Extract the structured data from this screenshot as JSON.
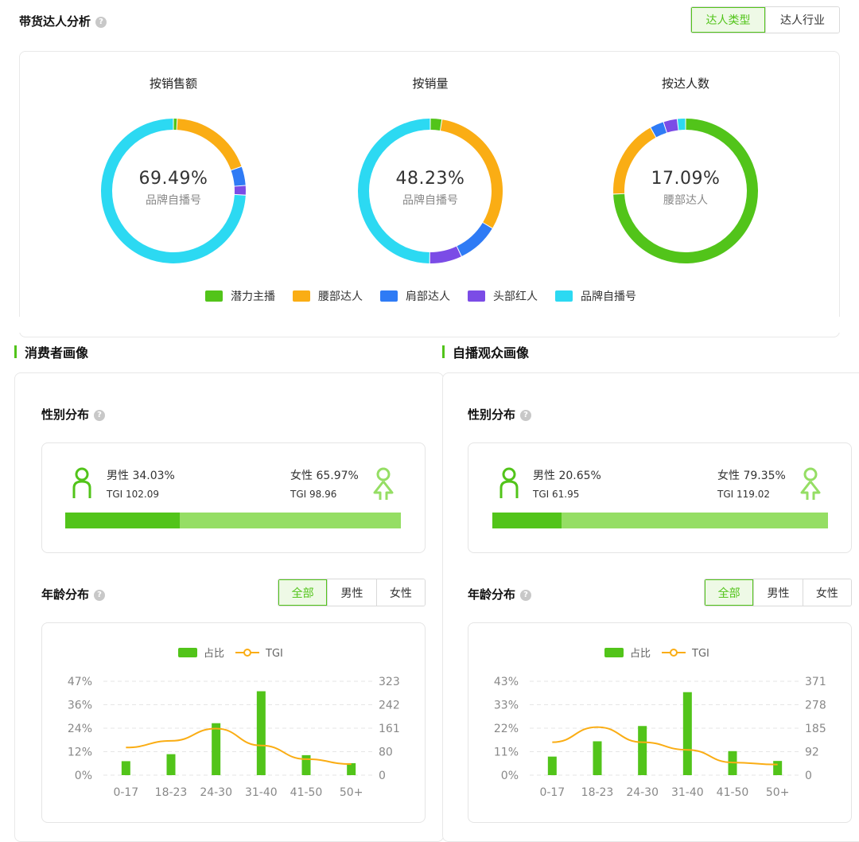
{
  "top": {
    "title": "带货达人分析",
    "tabs": [
      {
        "label": "达人类型",
        "active": true
      },
      {
        "label": "达人行业",
        "active": false
      }
    ]
  },
  "donuts": [
    {
      "title": "按销售额",
      "center_value": "69.49%",
      "center_label": "品牌自播号",
      "segments": [
        {
          "category": "潜力主播",
          "value": 0.8
        },
        {
          "category": "腰部达人",
          "value": 17.5
        },
        {
          "category": "肩部达人",
          "value": 4.0
        },
        {
          "category": "头部红人",
          "value": 2.0
        },
        {
          "category": "品牌自播号",
          "value": 69.49
        }
      ]
    },
    {
      "title": "按销量",
      "center_value": "48.23%",
      "center_label": "品牌自播号",
      "segments": [
        {
          "category": "潜力主播",
          "value": 2.5
        },
        {
          "category": "腰部达人",
          "value": 30.0
        },
        {
          "category": "肩部达人",
          "value": 9.0
        },
        {
          "category": "头部红人",
          "value": 7.0
        },
        {
          "category": "品牌自播号",
          "value": 48.23
        }
      ]
    },
    {
      "title": "按达人数",
      "center_value": "17.09%",
      "center_label": "腰部达人",
      "segments": [
        {
          "category": "潜力主播",
          "value": 72.0
        },
        {
          "category": "腰部达人",
          "value": 17.09
        },
        {
          "category": "肩部达人",
          "value": 3.0
        },
        {
          "category": "头部红人",
          "value": 3.0
        },
        {
          "category": "品牌自播号",
          "value": 1.8
        }
      ]
    }
  ],
  "legend": [
    {
      "label": "潜力主播",
      "color": "#52c41a"
    },
    {
      "label": "腰部达人",
      "color": "#faad14"
    },
    {
      "label": "肩部达人",
      "color": "#2f7bf5"
    },
    {
      "label": "头部红人",
      "color": "#7b4ce6"
    },
    {
      "label": "品牌自播号",
      "color": "#2cd9f2"
    }
  ],
  "panels": [
    {
      "title": "消费者画像",
      "gender_title": "性别分布",
      "male_label": "男性 34.03%",
      "male_tgi": "TGI 102.09",
      "female_label": "女性 65.97%",
      "female_tgi": "TGI 98.96",
      "male_share": 0.3403,
      "age_title": "年龄分布",
      "age_tabs": [
        {
          "label": "全部",
          "active": true
        },
        {
          "label": "男性",
          "active": false
        },
        {
          "label": "女性",
          "active": false
        }
      ],
      "legend_bar": "占比",
      "legend_line": "TGI",
      "chart_data": {
        "type": "bar",
        "categories": [
          "0-17",
          "18-23",
          "24-30",
          "31-40",
          "41-50",
          "50+"
        ],
        "series": [
          {
            "name": "占比",
            "type": "bar",
            "axis": "left",
            "values": [
              7,
              10.5,
              26,
              42,
              10,
              6
            ]
          },
          {
            "name": "TGI",
            "type": "line",
            "axis": "right",
            "values": [
              95,
              118,
              160,
              102,
              55,
              38
            ]
          }
        ],
        "left_ticks": [
          "0%",
          "12%",
          "24%",
          "36%",
          "47%"
        ],
        "left_max": 47,
        "right_ticks": [
          "0",
          "80",
          "161",
          "242",
          "323"
        ],
        "right_max": 323
      }
    },
    {
      "title": "自播观众画像",
      "gender_title": "性别分布",
      "male_label": "男性 20.65%",
      "male_tgi": "TGI 61.95",
      "female_label": "女性 79.35%",
      "female_tgi": "TGI 119.02",
      "male_share": 0.2065,
      "age_title": "年龄分布",
      "age_tabs": [
        {
          "label": "全部",
          "active": true
        },
        {
          "label": "男性",
          "active": false
        },
        {
          "label": "女性",
          "active": false
        }
      ],
      "legend_bar": "占比",
      "legend_line": "TGI",
      "chart_data": {
        "type": "bar",
        "categories": [
          "0-17",
          "18-23",
          "24-30",
          "31-40",
          "41-50",
          "50+"
        ],
        "series": [
          {
            "name": "占比",
            "type": "bar",
            "axis": "left",
            "values": [
              8.5,
              15.5,
              22.5,
              38,
              11,
              6.5
            ]
          },
          {
            "name": "TGI",
            "type": "line",
            "axis": "right",
            "values": [
              130,
              190,
              130,
              100,
              50,
              42
            ]
          }
        ],
        "left_ticks": [
          "0%",
          "11%",
          "22%",
          "33%",
          "43%"
        ],
        "left_max": 43,
        "right_ticks": [
          "0",
          "92",
          "185",
          "278",
          "371"
        ],
        "right_max": 371
      }
    }
  ],
  "colors": {
    "green": "#52c41a",
    "light_green": "#95de64",
    "orange": "#faad14"
  },
  "icons": {
    "help": "question-circle-icon",
    "male": "male-person-icon",
    "female": "female-person-icon"
  }
}
